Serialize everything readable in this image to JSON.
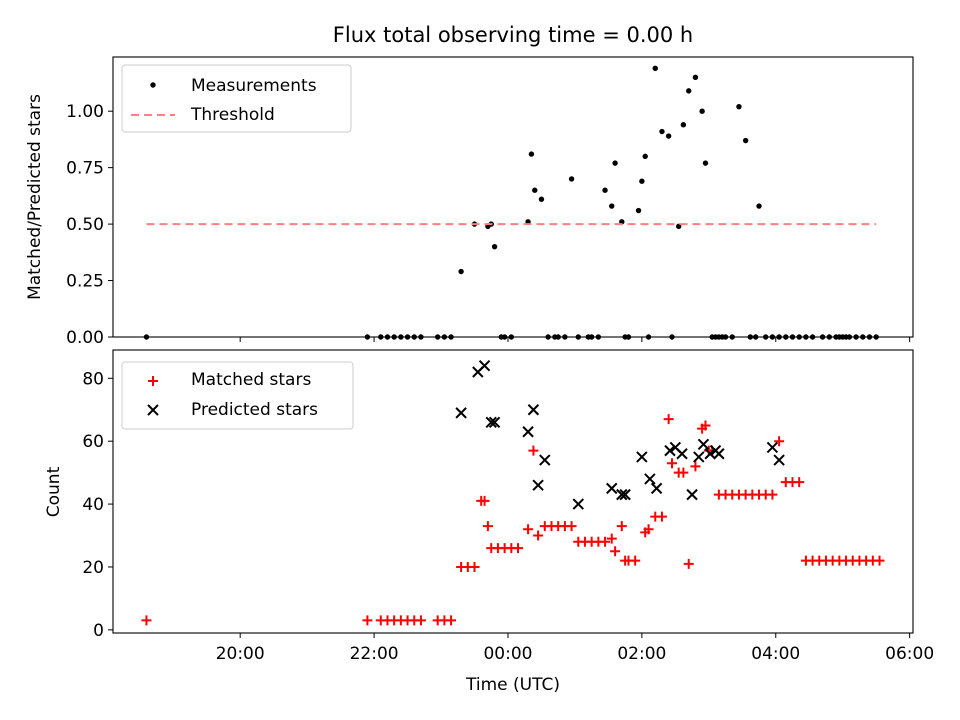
{
  "chart_data": [
    {
      "type": "scatter",
      "title": "Flux total observing time = 0.00 h",
      "xlabel": "",
      "ylabel": "Matched/Predicted stars",
      "xlim": [
        18.1,
        30.05
      ],
      "ylim": [
        0,
        1.24
      ],
      "yticks": [
        0.0,
        0.25,
        0.5,
        0.75,
        1.0
      ],
      "ytick_labels": [
        "0.00",
        "0.25",
        "0.50",
        "0.75",
        "1.00"
      ],
      "legend_position": "upper-left",
      "series": [
        {
          "name": "Measurements",
          "marker": "dot",
          "color": "#000000",
          "x": [
            18.6,
            21.9,
            22.1,
            22.2,
            22.3,
            22.4,
            22.5,
            22.6,
            22.7,
            22.95,
            23.05,
            23.15,
            23.3,
            23.5,
            23.7,
            23.75,
            23.8,
            23.9,
            23.95,
            24.05,
            24.3,
            24.35,
            24.4,
            24.5,
            24.6,
            24.7,
            24.75,
            24.85,
            24.95,
            25.05,
            25.2,
            25.25,
            25.35,
            25.45,
            25.55,
            25.6,
            25.7,
            25.75,
            25.8,
            25.95,
            26.0,
            26.05,
            26.1,
            26.2,
            26.3,
            26.4,
            26.45,
            26.55,
            26.62,
            26.7,
            26.8,
            26.9,
            26.95,
            27.05,
            27.1,
            27.15,
            27.2,
            27.25,
            27.35,
            27.45,
            27.55,
            27.62,
            27.7,
            27.75,
            27.85,
            27.95,
            28.05,
            28.15,
            28.25,
            28.35,
            28.45,
            28.55,
            28.7,
            28.8,
            28.9,
            28.95,
            29.0,
            29.05,
            29.1,
            29.2,
            29.3,
            29.4,
            29.5
          ],
          "y": [
            0.0,
            0.0,
            0.0,
            0.0,
            0.0,
            0.0,
            0.0,
            0.0,
            0.0,
            0.0,
            0.0,
            0.0,
            0.29,
            0.5,
            0.49,
            0.5,
            0.4,
            0.0,
            0.0,
            0.0,
            0.51,
            0.81,
            0.65,
            0.61,
            0.0,
            0.0,
            0.0,
            0.0,
            0.7,
            0.0,
            0.0,
            0.0,
            0.0,
            0.65,
            0.58,
            0.77,
            0.51,
            0.0,
            0.0,
            0.56,
            0.69,
            0.8,
            0.0,
            1.19,
            0.91,
            0.89,
            0.0,
            0.49,
            0.94,
            1.09,
            1.15,
            1.0,
            0.77,
            0.0,
            0.0,
            0.0,
            0.0,
            0.0,
            0.0,
            1.02,
            0.87,
            0.0,
            0.0,
            0.58,
            0.0,
            0.0,
            0.0,
            0.0,
            0.0,
            0.0,
            0.0,
            0.0,
            0.0,
            0.0,
            0.0,
            0.0,
            0.0,
            0.0,
            0.0,
            0.0,
            0.0,
            0.0,
            0.0
          ]
        },
        {
          "name": "Threshold",
          "marker": "dashed-line",
          "color": "#ff8080",
          "x": [
            18.6,
            29.5
          ],
          "y": [
            0.5,
            0.5
          ]
        }
      ]
    },
    {
      "type": "scatter",
      "title": "",
      "xlabel": "Time (UTC)",
      "ylabel": "Count",
      "xlim": [
        18.1,
        30.05
      ],
      "ylim": [
        -1,
        89
      ],
      "yticks": [
        0,
        20,
        40,
        60,
        80
      ],
      "ytick_labels": [
        "0",
        "20",
        "40",
        "60",
        "80"
      ],
      "xticks": [
        20,
        22,
        24,
        26,
        28,
        30
      ],
      "xtick_labels": [
        "20:00",
        "22:00",
        "00:00",
        "02:00",
        "04:00",
        "06:00"
      ],
      "legend_position": "upper-left",
      "series": [
        {
          "name": "Matched stars",
          "marker": "plus",
          "color": "#ff0000",
          "x": [
            18.6,
            21.9,
            22.1,
            22.2,
            22.3,
            22.4,
            22.5,
            22.6,
            22.7,
            22.95,
            23.05,
            23.15,
            23.3,
            23.4,
            23.5,
            23.6,
            23.65,
            23.7,
            23.75,
            23.85,
            23.95,
            24.05,
            24.15,
            24.3,
            24.38,
            24.45,
            24.55,
            24.65,
            24.75,
            24.85,
            24.95,
            25.05,
            25.15,
            25.25,
            25.35,
            25.45,
            25.55,
            25.6,
            25.7,
            25.75,
            25.8,
            25.9,
            26.05,
            26.1,
            26.2,
            26.3,
            26.4,
            26.45,
            26.55,
            26.62,
            26.7,
            26.8,
            26.9,
            26.95,
            27.0,
            27.05,
            27.15,
            27.25,
            27.35,
            27.45,
            27.55,
            27.65,
            27.75,
            27.85,
            27.95,
            28.05,
            28.15,
            28.25,
            28.35,
            28.45,
            28.55,
            28.65,
            28.75,
            28.85,
            28.95,
            29.05,
            29.15,
            29.25,
            29.35,
            29.45,
            29.55
          ],
          "y": [
            3,
            3,
            3,
            3,
            3,
            3,
            3,
            3,
            3,
            3,
            3,
            3,
            20,
            20,
            20,
            41,
            41,
            33,
            26,
            26,
            26,
            26,
            26,
            32,
            57,
            30,
            33,
            33,
            33,
            33,
            33,
            28,
            28,
            28,
            28,
            28,
            29,
            25,
            33,
            22,
            22,
            22,
            31,
            32,
            36,
            36,
            67,
            53,
            50,
            50,
            21,
            52,
            64,
            65,
            57,
            57,
            43,
            43,
            43,
            43,
            43,
            43,
            43,
            43,
            43,
            60,
            47,
            47,
            47,
            22,
            22,
            22,
            22,
            22,
            22,
            22,
            22,
            22,
            22,
            22,
            22
          ]
        },
        {
          "name": "Predicted stars",
          "marker": "x",
          "color": "#000000",
          "x": [
            23.3,
            23.55,
            23.65,
            23.75,
            23.8,
            24.3,
            24.38,
            24.45,
            24.55,
            25.05,
            25.55,
            25.7,
            25.75,
            26.0,
            26.12,
            26.22,
            26.42,
            26.5,
            26.6,
            26.75,
            26.85,
            26.92,
            27.02,
            27.1,
            27.15,
            27.95,
            28.05
          ],
          "y": [
            69,
            82,
            84,
            66,
            66,
            63,
            70,
            46,
            54,
            40,
            45,
            43,
            43,
            55,
            48,
            45,
            57,
            58,
            56,
            43,
            55,
            59,
            56,
            57,
            56,
            58,
            54
          ]
        }
      ]
    }
  ]
}
